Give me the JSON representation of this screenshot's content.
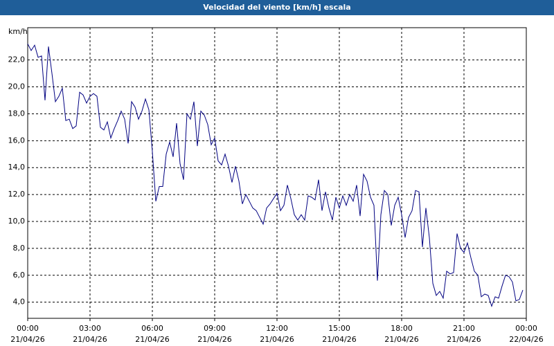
{
  "chart_data": {
    "type": "line",
    "title": "Velocidad del viento [km/h] escala",
    "y_label": "km/h",
    "color": "#000080",
    "grid": true,
    "xlim": [
      "21/04/26 00:00",
      "22/04/26 00:00"
    ],
    "xticks": [
      {
        "value": "21/04/26 00:00",
        "label": "00:00",
        "date": "21/04/26"
      },
      {
        "value": "21/04/26 03:00",
        "label": "03:00",
        "date": "21/04/26"
      },
      {
        "value": "21/04/26 06:00",
        "label": "06:00",
        "date": "21/04/26"
      },
      {
        "value": "21/04/26 09:00",
        "label": "09:00",
        "date": "21/04/26"
      },
      {
        "value": "21/04/26 12:00",
        "label": "12:00",
        "date": "21/04/26"
      },
      {
        "value": "21/04/26 15:00",
        "label": "15:00",
        "date": "21/04/26"
      },
      {
        "value": "21/04/26 18:00",
        "label": "18:00",
        "date": "21/04/26"
      },
      {
        "value": "21/04/26 21:00",
        "label": "21:00",
        "date": "21/04/26"
      },
      {
        "value": "22/04/26 00:00",
        "label": "00:00",
        "date": "22/04/26"
      }
    ],
    "ylim": [
      2.8,
      24.4
    ],
    "yticks": [
      {
        "value": 4,
        "label": "4,0"
      },
      {
        "value": 6,
        "label": "6,0"
      },
      {
        "value": 8,
        "label": "8,0"
      },
      {
        "value": 10,
        "label": "10,0"
      },
      {
        "value": 12,
        "label": "12,0"
      },
      {
        "value": 14,
        "label": "14,0"
      },
      {
        "value": 16,
        "label": "16,0"
      },
      {
        "value": 18,
        "label": "18,0"
      },
      {
        "value": 20,
        "label": "20,0"
      },
      {
        "value": 22,
        "label": "22,0"
      }
    ],
    "x": [
      "21/04/26 00:00",
      "21/04/26 00:10",
      "21/04/26 00:20",
      "21/04/26 00:30",
      "21/04/26 00:40",
      "21/04/26 00:50",
      "21/04/26 01:00",
      "21/04/26 01:10",
      "21/04/26 01:20",
      "21/04/26 01:30",
      "21/04/26 01:40",
      "21/04/26 01:50",
      "21/04/26 02:00",
      "21/04/26 02:10",
      "21/04/26 02:20",
      "21/04/26 02:30",
      "21/04/26 02:40",
      "21/04/26 02:50",
      "21/04/26 03:00",
      "21/04/26 03:10",
      "21/04/26 03:20",
      "21/04/26 03:30",
      "21/04/26 03:40",
      "21/04/26 03:50",
      "21/04/26 04:00",
      "21/04/26 04:10",
      "21/04/26 04:20",
      "21/04/26 04:30",
      "21/04/26 04:40",
      "21/04/26 04:50",
      "21/04/26 05:00",
      "21/04/26 05:10",
      "21/04/26 05:20",
      "21/04/26 05:30",
      "21/04/26 05:40",
      "21/04/26 05:50",
      "21/04/26 06:00",
      "21/04/26 06:10",
      "21/04/26 06:20",
      "21/04/26 06:30",
      "21/04/26 06:40",
      "21/04/26 06:50",
      "21/04/26 07:00",
      "21/04/26 07:10",
      "21/04/26 07:20",
      "21/04/26 07:30",
      "21/04/26 07:40",
      "21/04/26 07:50",
      "21/04/26 08:00",
      "21/04/26 08:10",
      "21/04/26 08:20",
      "21/04/26 08:30",
      "21/04/26 08:40",
      "21/04/26 08:50",
      "21/04/26 09:00",
      "21/04/26 09:10",
      "21/04/26 09:20",
      "21/04/26 09:30",
      "21/04/26 09:40",
      "21/04/26 09:50",
      "21/04/26 10:00",
      "21/04/26 10:10",
      "21/04/26 10:20",
      "21/04/26 10:30",
      "21/04/26 10:40",
      "21/04/26 10:50",
      "21/04/26 11:00",
      "21/04/26 11:10",
      "21/04/26 11:20",
      "21/04/26 11:30",
      "21/04/26 11:40",
      "21/04/26 11:50",
      "21/04/26 12:00",
      "21/04/26 12:10",
      "21/04/26 12:20",
      "21/04/26 12:30",
      "21/04/26 12:40",
      "21/04/26 12:50",
      "21/04/26 13:00",
      "21/04/26 13:10",
      "21/04/26 13:20",
      "21/04/26 13:30",
      "21/04/26 13:40",
      "21/04/26 13:50",
      "21/04/26 14:00",
      "21/04/26 14:10",
      "21/04/26 14:20",
      "21/04/26 14:30",
      "21/04/26 14:40",
      "21/04/26 14:50",
      "21/04/26 15:00",
      "21/04/26 15:10",
      "21/04/26 15:20",
      "21/04/26 15:30",
      "21/04/26 15:40",
      "21/04/26 15:50",
      "21/04/26 16:00",
      "21/04/26 16:10",
      "21/04/26 16:20",
      "21/04/26 16:30",
      "21/04/26 16:40",
      "21/04/26 16:50",
      "21/04/26 17:00",
      "21/04/26 17:10",
      "21/04/26 17:20",
      "21/04/26 17:30",
      "21/04/26 17:40",
      "21/04/26 17:50",
      "21/04/26 18:00",
      "21/04/26 18:10",
      "21/04/26 18:20",
      "21/04/26 18:30",
      "21/04/26 18:40",
      "21/04/26 18:50",
      "21/04/26 19:00",
      "21/04/26 19:10",
      "21/04/26 19:20",
      "21/04/26 19:30",
      "21/04/26 19:40",
      "21/04/26 19:50",
      "21/04/26 20:00",
      "21/04/26 20:10",
      "21/04/26 20:20",
      "21/04/26 20:30",
      "21/04/26 20:40",
      "21/04/26 20:50",
      "21/04/26 21:00",
      "21/04/26 21:10",
      "21/04/26 21:20",
      "21/04/26 21:30",
      "21/04/26 21:40",
      "21/04/26 21:50",
      "21/04/26 22:00",
      "21/04/26 22:10",
      "21/04/26 22:20",
      "21/04/26 22:30",
      "21/04/26 22:40",
      "21/04/26 22:50",
      "21/04/26 23:00",
      "21/04/26 23:10",
      "21/04/26 23:20",
      "21/04/26 23:30",
      "21/04/26 23:40",
      "21/04/26 23:50"
    ],
    "values": [
      23.2,
      22.7,
      23.1,
      22.2,
      22.3,
      19.0,
      23.0,
      21.0,
      18.9,
      19.3,
      19.9,
      17.5,
      17.6,
      16.9,
      17.1,
      19.6,
      19.4,
      18.8,
      19.3,
      19.5,
      19.3,
      17.0,
      16.8,
      17.4,
      16.2,
      16.9,
      17.5,
      18.2,
      17.6,
      15.8,
      18.9,
      18.5,
      17.6,
      18.2,
      19.1,
      18.3,
      15.2,
      11.5,
      12.6,
      12.6,
      15.0,
      15.9,
      14.8,
      17.3,
      14.3,
      13.1,
      18.0,
      17.6,
      18.9,
      15.6,
      18.2,
      17.9,
      17.2,
      15.7,
      16.2,
      14.5,
      14.2,
      15.0,
      14.1,
      12.9,
      14.1,
      13.0,
      11.3,
      12.0,
      11.5,
      11.0,
      10.8,
      10.3,
      9.8,
      11.0,
      11.3,
      11.7,
      12.1,
      10.8,
      11.2,
      12.7,
      11.7,
      10.5,
      10.1,
      10.5,
      10.1,
      11.9,
      11.8,
      11.6,
      13.1,
      10.8,
      12.2,
      11.0,
      10.1,
      11.8,
      11.0,
      11.9,
      11.2,
      12.0,
      11.5,
      12.7,
      10.4,
      13.5,
      13.0,
      11.8,
      11.2,
      5.6,
      10.5,
      12.3,
      12.0,
      9.7,
      11.2,
      11.8,
      10.5,
      8.8,
      10.3,
      10.8,
      12.3,
      12.2,
      8.1,
      11.0,
      8.8,
      5.4,
      4.5,
      4.8,
      4.3,
      6.3,
      6.1,
      6.2,
      9.1,
      8.0,
      7.7,
      8.4,
      7.3,
      6.3,
      6.0,
      4.4,
      4.6,
      4.5,
      3.7,
      4.4,
      4.3,
      5.2,
      6.0,
      5.9,
      5.5,
      4.1,
      4.2,
      4.9
    ]
  }
}
